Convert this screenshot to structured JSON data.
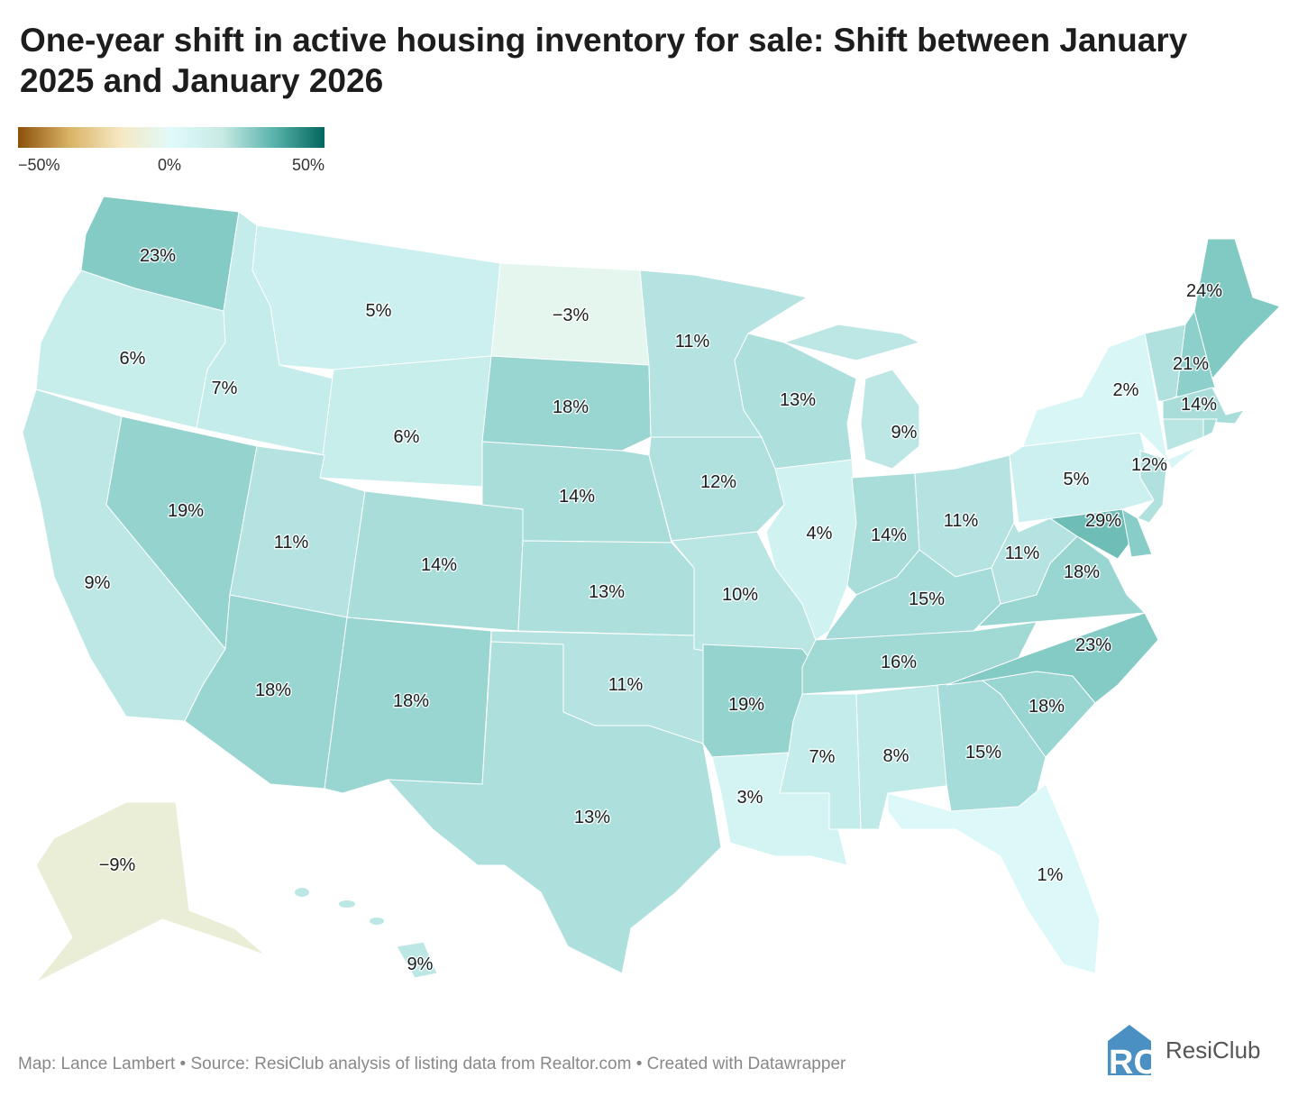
{
  "title": "One-year shift in active housing inventory for sale: Shift between January 2025 and January 2026",
  "legend": {
    "min_label": "−50%",
    "mid_label": "0%",
    "max_label": "50%",
    "range": [
      -50,
      50
    ],
    "colors": {
      "neg": "#8c510a",
      "zero": "#e0fafa",
      "pos": "#01665e"
    }
  },
  "footer": "Map: Lance Lambert • Source: ResiClub analysis of listing data from Realtor.com • Created with Datawrapper",
  "logo": {
    "text": "ResiClub",
    "mark": "RC",
    "color": "#4a90c2"
  },
  "states": [
    {
      "id": "WA",
      "value": 23,
      "label": "23%"
    },
    {
      "id": "OR",
      "value": 6,
      "label": "6%"
    },
    {
      "id": "CA",
      "value": 9,
      "label": "9%"
    },
    {
      "id": "NV",
      "value": 19,
      "label": "19%"
    },
    {
      "id": "ID",
      "value": 7,
      "label": "7%"
    },
    {
      "id": "MT",
      "value": 5,
      "label": "5%"
    },
    {
      "id": "WY",
      "value": 6,
      "label": "6%"
    },
    {
      "id": "UT",
      "value": 11,
      "label": "11%"
    },
    {
      "id": "CO",
      "value": 14,
      "label": "14%"
    },
    {
      "id": "AZ",
      "value": 18,
      "label": "18%"
    },
    {
      "id": "NM",
      "value": 18,
      "label": "18%"
    },
    {
      "id": "ND",
      "value": -3,
      "label": "−3%"
    },
    {
      "id": "SD",
      "value": 18,
      "label": "18%"
    },
    {
      "id": "NE",
      "value": 14,
      "label": "14%"
    },
    {
      "id": "KS",
      "value": 13,
      "label": "13%"
    },
    {
      "id": "OK",
      "value": 11,
      "label": "11%"
    },
    {
      "id": "TX",
      "value": 13,
      "label": "13%"
    },
    {
      "id": "MN",
      "value": 11,
      "label": "11%"
    },
    {
      "id": "IA",
      "value": 12,
      "label": "12%"
    },
    {
      "id": "MO",
      "value": 10,
      "label": "10%"
    },
    {
      "id": "AR",
      "value": 19,
      "label": "19%"
    },
    {
      "id": "LA",
      "value": 3,
      "label": "3%"
    },
    {
      "id": "WI",
      "value": 13,
      "label": "13%"
    },
    {
      "id": "MI",
      "value": 9,
      "label": "9%"
    },
    {
      "id": "IL",
      "value": 4,
      "label": "4%"
    },
    {
      "id": "IN",
      "value": 14,
      "label": "14%"
    },
    {
      "id": "OH",
      "value": 11,
      "label": "11%"
    },
    {
      "id": "KY",
      "value": 15,
      "label": "15%"
    },
    {
      "id": "TN",
      "value": 16,
      "label": "16%"
    },
    {
      "id": "MS",
      "value": 7,
      "label": "7%"
    },
    {
      "id": "AL",
      "value": 8,
      "label": "8%"
    },
    {
      "id": "GA",
      "value": 15,
      "label": "15%"
    },
    {
      "id": "FL",
      "value": 1,
      "label": "1%"
    },
    {
      "id": "SC",
      "value": 18,
      "label": "18%"
    },
    {
      "id": "NC",
      "value": 23,
      "label": "23%"
    },
    {
      "id": "VA",
      "value": 18,
      "label": "18%"
    },
    {
      "id": "WV",
      "value": 11,
      "label": "11%"
    },
    {
      "id": "MD",
      "value": 29,
      "label": "29%"
    },
    {
      "id": "PA",
      "value": 5,
      "label": "5%"
    },
    {
      "id": "NJ",
      "value": 12,
      "label": "12%"
    },
    {
      "id": "NY",
      "value": 2,
      "label": "2%"
    },
    {
      "id": "NH",
      "value": 21,
      "label": "21%"
    },
    {
      "id": "ME",
      "value": 24,
      "label": "24%"
    },
    {
      "id": "MA",
      "value": 14,
      "label": "14%"
    },
    {
      "id": "AK",
      "value": -9,
      "label": "−9%"
    },
    {
      "id": "HI",
      "value": 9,
      "label": "9%"
    }
  ]
}
